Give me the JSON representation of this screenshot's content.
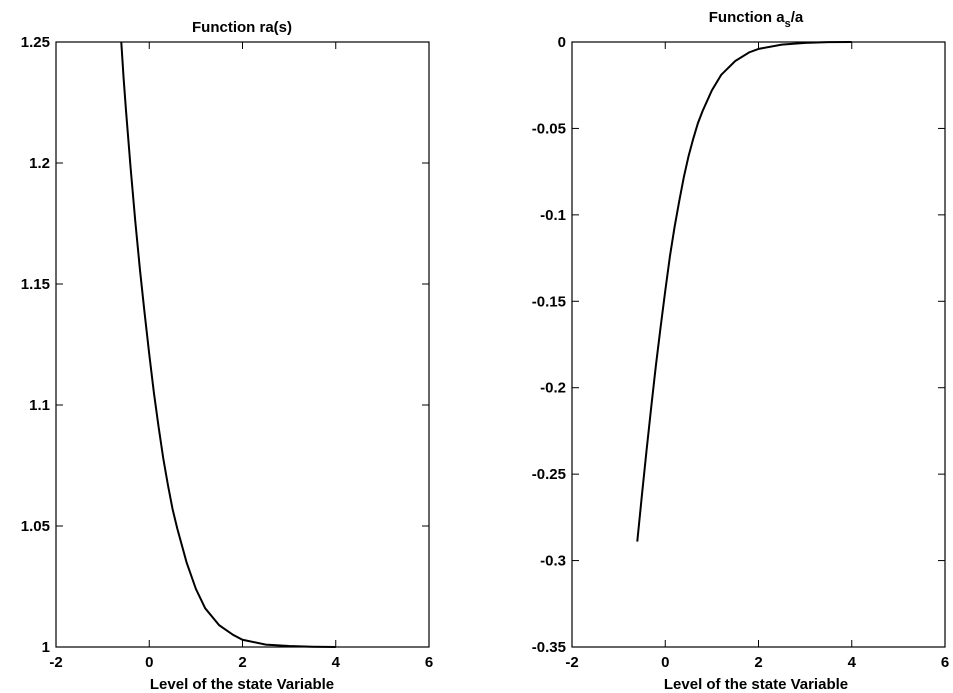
{
  "chart_data": [
    {
      "type": "line",
      "title": "Function ra(s)",
      "xlabel": "Level of the state Variable",
      "ylabel": "",
      "xlim": [
        -2,
        6
      ],
      "ylim": [
        1,
        1.25
      ],
      "xticks": [
        "-2",
        "0",
        "2",
        "4",
        "6"
      ],
      "yticks": [
        "1",
        "1.05",
        "1.1",
        "1.15",
        "1.2",
        "1.25"
      ],
      "grid": false,
      "series": [
        {
          "x": [
            -0.6,
            -0.55,
            -0.5,
            -0.4,
            -0.3,
            -0.2,
            -0.1,
            0,
            0.1,
            0.2,
            0.3,
            0.4,
            0.5,
            0.6,
            0.8,
            1.0,
            1.2,
            1.5,
            1.8,
            2.0,
            2.5,
            3.0,
            3.5,
            4.0
          ],
          "y": [
            1.25,
            1.235,
            1.222,
            1.198,
            1.176,
            1.156,
            1.138,
            1.121,
            1.105,
            1.091,
            1.078,
            1.067,
            1.057,
            1.049,
            1.035,
            1.024,
            1.016,
            1.009,
            1.005,
            1.003,
            1.001,
            1.0004,
            1.0001,
            1.0
          ]
        }
      ]
    },
    {
      "type": "line",
      "title": "Function a",
      "title_sub": "s",
      "title_suffix": "/a",
      "xlabel": "Level of the state Variable",
      "ylabel": "",
      "xlim": [
        -2,
        6
      ],
      "ylim": [
        -0.35,
        0
      ],
      "xticks": [
        "-2",
        "0",
        "2",
        "4",
        "6"
      ],
      "yticks": [
        "0",
        "-0.05",
        "-0.1",
        "-0.15",
        "-0.2",
        "-0.25",
        "-0.3",
        "-0.35"
      ],
      "grid": false,
      "series": [
        {
          "x": [
            -0.6,
            -0.5,
            -0.4,
            -0.3,
            -0.2,
            -0.1,
            0,
            0.1,
            0.2,
            0.3,
            0.4,
            0.5,
            0.6,
            0.7,
            0.8,
            1.0,
            1.2,
            1.5,
            1.8,
            2.0,
            2.5,
            3.0,
            3.5,
            4.0
          ],
          "y": [
            -0.289,
            -0.262,
            -0.236,
            -0.211,
            -0.187,
            -0.165,
            -0.144,
            -0.124,
            -0.107,
            -0.092,
            -0.078,
            -0.066,
            -0.056,
            -0.047,
            -0.04,
            -0.028,
            -0.019,
            -0.011,
            -0.006,
            -0.004,
            -0.0015,
            -0.0005,
            -0.0001,
            0.0
          ]
        }
      ]
    }
  ]
}
